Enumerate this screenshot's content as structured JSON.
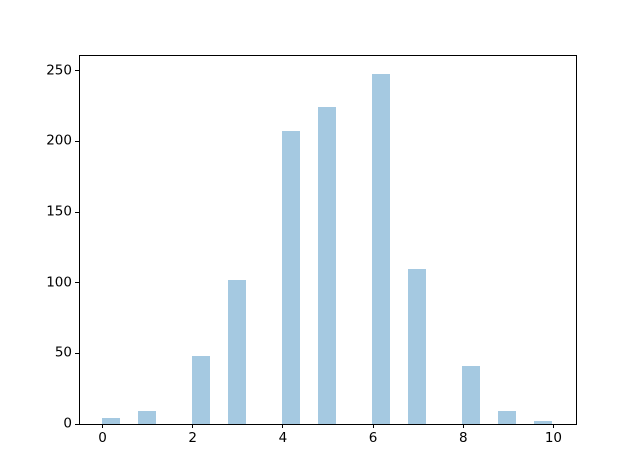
{
  "chart_data": {
    "type": "bar",
    "subtype": "histogram",
    "title": "",
    "xlabel": "",
    "ylabel": "",
    "grid": false,
    "legend": null,
    "background": "#ffffff",
    "bar_color": "#a5c9e1",
    "axis_color": "#000000",
    "xlim": [
      -0.5,
      10.5
    ],
    "ylim": [
      0,
      260.4
    ],
    "categories": [
      0,
      1,
      2,
      3,
      4,
      5,
      6,
      7,
      8,
      9,
      10
    ],
    "values": [
      4,
      9,
      48,
      102,
      207,
      224,
      248,
      110,
      41,
      9,
      2
    ],
    "x_ticks": [
      {
        "value": 0,
        "label": "0"
      },
      {
        "value": 2,
        "label": "2"
      },
      {
        "value": 4,
        "label": "4"
      },
      {
        "value": 6,
        "label": "6"
      },
      {
        "value": 8,
        "label": "8"
      },
      {
        "value": 10,
        "label": "10"
      }
    ],
    "y_ticks": [
      {
        "value": 0,
        "label": "0"
      },
      {
        "value": 50,
        "label": "50"
      },
      {
        "value": 100,
        "label": "100"
      },
      {
        "value": 150,
        "label": "150"
      },
      {
        "value": 200,
        "label": "200"
      },
      {
        "value": 250,
        "label": "250"
      }
    ],
    "bars": [
      {
        "center": 0,
        "left": 0.0,
        "right": 0.4,
        "count": 4
      },
      {
        "center": 1,
        "left": 0.8,
        "right": 1.2,
        "count": 9
      },
      {
        "center": 2,
        "left": 2.0,
        "right": 2.4,
        "count": 48
      },
      {
        "center": 3,
        "left": 2.8,
        "right": 3.2,
        "count": 102
      },
      {
        "center": 4,
        "left": 4.0,
        "right": 4.4,
        "count": 207
      },
      {
        "center": 5,
        "left": 4.8,
        "right": 5.2,
        "count": 224
      },
      {
        "center": 6,
        "left": 6.0,
        "right": 6.4,
        "count": 248
      },
      {
        "center": 7,
        "left": 6.8,
        "right": 7.2,
        "count": 110
      },
      {
        "center": 8,
        "left": 8.0,
        "right": 8.4,
        "count": 41
      },
      {
        "center": 9,
        "left": 8.8,
        "right": 9.2,
        "count": 9
      },
      {
        "center": 10,
        "left": 9.6,
        "right": 10.0,
        "count": 2
      }
    ]
  }
}
